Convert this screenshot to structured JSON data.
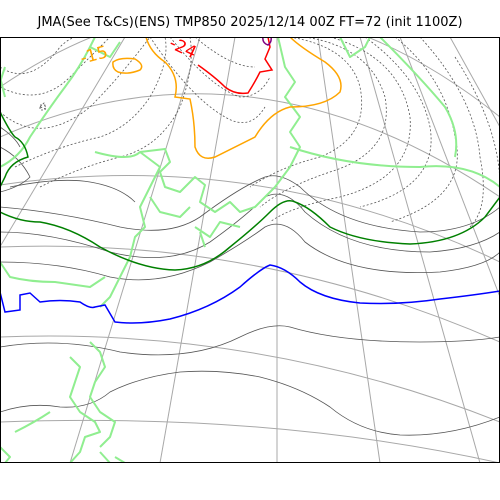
{
  "header": {
    "title": "JMA(See T&Cs)(ENS) TMP850 2025/12/14 00Z FT=72 (init 1100Z)"
  },
  "map": {
    "colors": {
      "coastline": "#90ee90",
      "graticule": "#a8a8a8",
      "isotherm_thin": "#555555",
      "isotherm_dotted": "#555555",
      "isotherm_0": "#008000",
      "isotherm_minus6": "#0000ff",
      "isotherm_minus15": "#ffa500",
      "isotherm_minus24": "#ff0000",
      "isotherm_minus30": "#800080"
    },
    "labels": [
      {
        "id": "label-minus15",
        "text": "-15",
        "color": "#ffa500"
      },
      {
        "id": "label-minus24",
        "text": "-24",
        "color": "#ff0000"
      }
    ]
  }
}
